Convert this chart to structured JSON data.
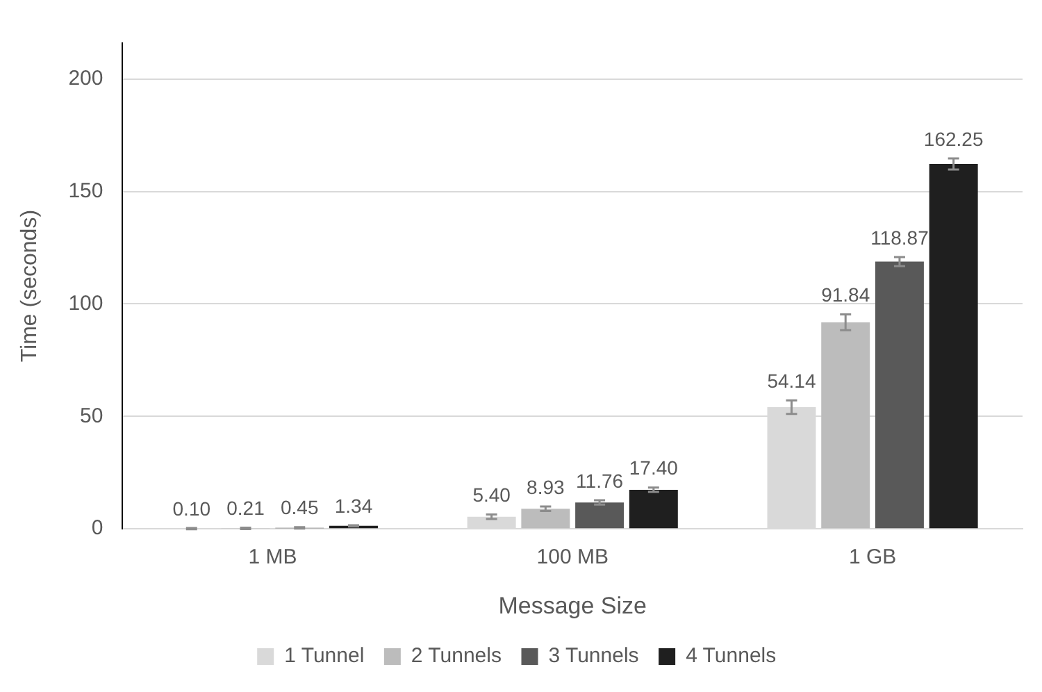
{
  "chart_data": {
    "type": "bar",
    "xlabel": "Message Size",
    "ylabel": "Time (seconds)",
    "categories": [
      "1 MB",
      "100 MB",
      "1 GB"
    ],
    "series": [
      {
        "name": "1 Tunnel",
        "color": "#d9d9d9",
        "values": [
          0.1,
          5.4,
          54.14
        ],
        "value_labels": [
          "0.10",
          "5.40",
          "54.14"
        ],
        "errors": [
          0.3,
          1,
          3
        ]
      },
      {
        "name": "2 Tunnels",
        "color": "#bcbcbc",
        "values": [
          0.21,
          8.93,
          91.84
        ],
        "value_labels": [
          "0.21",
          "8.93",
          "91.84"
        ],
        "errors": [
          0.3,
          1,
          3.5
        ]
      },
      {
        "name": "3 Tunnels",
        "color": "#595959",
        "values": [
          0.45,
          11.76,
          118.87
        ],
        "value_labels": [
          "0.45",
          "11.76",
          "118.87"
        ],
        "errors": [
          0.3,
          1,
          2
        ]
      },
      {
        "name": "4 Tunnels",
        "color": "#1f1f1f",
        "values": [
          1.34,
          17.4,
          162.25
        ],
        "value_labels": [
          "1.34",
          "17.40",
          "162.25"
        ],
        "errors": [
          0.3,
          1,
          2.5
        ]
      }
    ],
    "ylim": [
      0,
      216
    ],
    "yticks": [
      0,
      50,
      100,
      150,
      200
    ],
    "grid": "y",
    "legend": "bottom"
  }
}
